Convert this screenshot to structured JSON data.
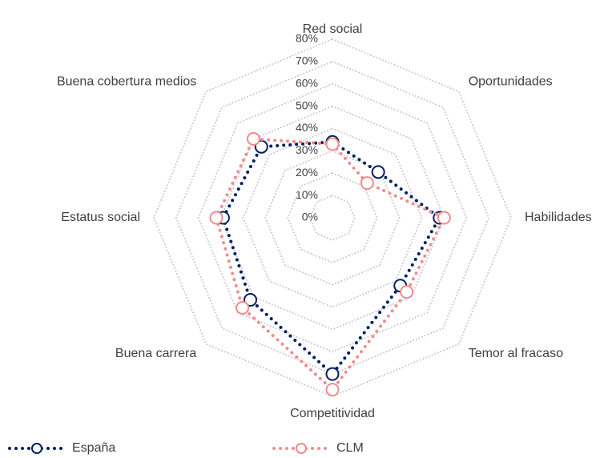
{
  "chart_data": {
    "type": "radar",
    "categories": [
      "Red social",
      "Oportunidades",
      "Habilidades",
      "Temor al fracaso",
      "Competitividad",
      "Buena carrera",
      "Estatus social",
      "Buena cobertura medios"
    ],
    "series": [
      {
        "name": "España",
        "color": "#002060",
        "values": [
          34,
          29,
          48,
          43,
          70,
          52,
          49,
          45
        ]
      },
      {
        "name": "CLM",
        "color": "#f08c8c",
        "values": [
          33,
          22,
          50,
          47,
          77,
          57,
          52,
          50
        ]
      }
    ],
    "ylim": [
      0,
      80
    ],
    "yticks": [
      {
        "value": 0,
        "label": "0%"
      },
      {
        "value": 10,
        "label": "10%"
      },
      {
        "value": 20,
        "label": "20%"
      },
      {
        "value": 30,
        "label": "30%"
      },
      {
        "value": 40,
        "label": "40%"
      },
      {
        "value": 50,
        "label": "50%"
      },
      {
        "value": 60,
        "label": "60%"
      },
      {
        "value": 70,
        "label": "70%"
      },
      {
        "value": 80,
        "label": "80%"
      }
    ],
    "grid": true,
    "legend": "bottom"
  }
}
